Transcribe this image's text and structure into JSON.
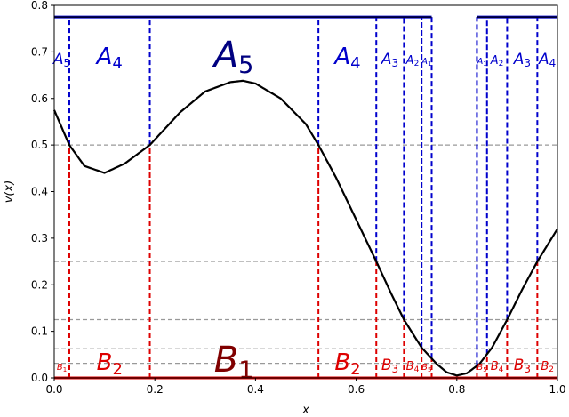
{
  "chart_data": {
    "type": "line",
    "title": "",
    "xlabel": "x",
    "ylabel": "v(x)",
    "xlim": [
      0,
      1
    ],
    "ylim": [
      0,
      0.8
    ],
    "x_ticks": [
      "0.0",
      "0.2",
      "0.4",
      "0.6",
      "0.8",
      "1.0"
    ],
    "y_ticks": [
      "0.0",
      "0.1",
      "0.2",
      "0.3",
      "0.4",
      "0.5",
      "0.6",
      "0.7",
      "0.8"
    ],
    "curve": {
      "color": "#000000",
      "x": [
        0.0,
        0.03,
        0.06,
        0.1,
        0.14,
        0.19,
        0.25,
        0.3,
        0.35,
        0.375,
        0.4,
        0.45,
        0.5,
        0.525,
        0.56,
        0.6,
        0.64,
        0.67,
        0.695,
        0.73,
        0.76,
        0.78,
        0.8,
        0.82,
        0.845,
        0.87,
        0.9,
        0.93,
        0.96,
        1.0
      ],
      "y": [
        0.575,
        0.5,
        0.455,
        0.44,
        0.46,
        0.5,
        0.57,
        0.615,
        0.635,
        0.638,
        0.632,
        0.6,
        0.545,
        0.5,
        0.43,
        0.34,
        0.25,
        0.18,
        0.125,
        0.065,
        0.03,
        0.012,
        0.005,
        0.01,
        0.03,
        0.065,
        0.125,
        0.19,
        0.25,
        0.32
      ]
    },
    "reference_levels": [
      0.5,
      0.25,
      0.125,
      0.0625,
      0.03125
    ],
    "top_bar_y": 0.775,
    "top_bar_segments": [
      [
        0.0,
        0.75
      ],
      [
        0.84,
        1.0
      ]
    ],
    "a_boundaries": [
      0.03,
      0.19,
      0.525,
      0.64,
      0.695,
      0.73,
      0.75,
      0.84,
      0.86,
      0.9,
      0.96
    ],
    "b_boundaries": [
      0.03,
      0.19,
      0.525,
      0.64,
      0.695,
      0.73,
      0.75,
      0.84,
      0.86,
      0.9,
      0.96
    ],
    "a_color": "#0000cc",
    "a_dark_color": "#000080",
    "b_color": "#dd0000",
    "b_dark_color": "#800000",
    "a_labels": [
      {
        "base": "A",
        "sub": "5",
        "x": 0.015,
        "size": "small"
      },
      {
        "base": "A",
        "sub": "4",
        "x": 0.11,
        "size": "medium"
      },
      {
        "base": "A",
        "sub": "5",
        "x": 0.357,
        "size": "large"
      },
      {
        "base": "A",
        "sub": "4",
        "x": 0.583,
        "size": "medium"
      },
      {
        "base": "A",
        "sub": "3",
        "x": 0.667,
        "size": "small"
      },
      {
        "base": "A",
        "sub": "2",
        "x": 0.712,
        "size": "xsmall"
      },
      {
        "base": "A",
        "sub": "1",
        "x": 0.74,
        "size": "xxsmall"
      },
      {
        "base": "A",
        "sub": "1",
        "x": 0.85,
        "size": "xxsmall"
      },
      {
        "base": "A",
        "sub": "2",
        "x": 0.88,
        "size": "xsmall"
      },
      {
        "base": "A",
        "sub": "3",
        "x": 0.93,
        "size": "small"
      },
      {
        "base": "A",
        "sub": "4",
        "x": 0.98,
        "size": "small"
      }
    ],
    "b_labels": [
      {
        "base": "B",
        "sub": "1",
        "x": 0.015,
        "size": "xxsmall"
      },
      {
        "base": "B",
        "sub": "2",
        "x": 0.11,
        "size": "medium"
      },
      {
        "base": "B",
        "sub": "1",
        "x": 0.357,
        "size": "large"
      },
      {
        "base": "B",
        "sub": "2",
        "x": 0.583,
        "size": "medium"
      },
      {
        "base": "B",
        "sub": "3",
        "x": 0.667,
        "size": "small"
      },
      {
        "base": "B",
        "sub": "4",
        "x": 0.712,
        "size": "xsmall"
      },
      {
        "base": "B",
        "sub": "5",
        "x": 0.74,
        "size": "xxsmall"
      },
      {
        "base": "B",
        "sub": "5",
        "x": 0.85,
        "size": "xxsmall"
      },
      {
        "base": "B",
        "sub": "4",
        "x": 0.88,
        "size": "xsmall"
      },
      {
        "base": "B",
        "sub": "3",
        "x": 0.93,
        "size": "small"
      },
      {
        "base": "B",
        "sub": "2",
        "x": 0.98,
        "size": "xsmall"
      }
    ],
    "grid": false,
    "legend": "none"
  }
}
